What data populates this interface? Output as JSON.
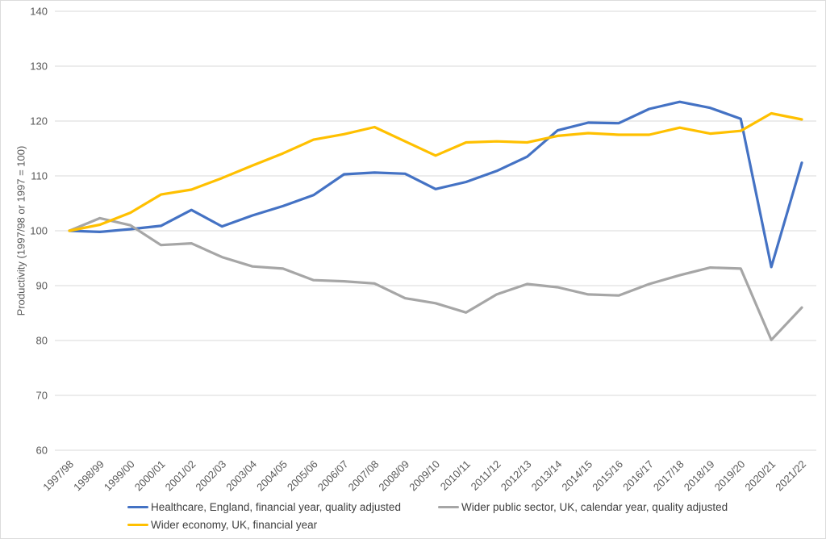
{
  "chart_data": {
    "type": "line",
    "title": "",
    "xlabel": "",
    "ylabel": "Productivity (1997/98 or 1997 = 100)",
    "ylim": [
      60,
      140
    ],
    "y_ticks": [
      60,
      70,
      80,
      90,
      100,
      110,
      120,
      130,
      140
    ],
    "grid": true,
    "legend_position": "bottom",
    "categories": [
      "1997/98",
      "1998/99",
      "1999/00",
      "2000/01",
      "2001/02",
      "2002/03",
      "2003/04",
      "2004/05",
      "2005/06",
      "2006/07",
      "2007/08",
      "2008/09",
      "2009/10",
      "2010/11",
      "2011/12",
      "2012/13",
      "2013/14",
      "2014/15",
      "2015/16",
      "2016/17",
      "2017/18",
      "2018/19",
      "2019/20",
      "2020/21",
      "2021/22"
    ],
    "series": [
      {
        "name": "Healthcare, England, financial year, quality adjusted",
        "color": "#4472C4",
        "values": [
          100,
          99.8,
          100.3,
          100.9,
          103.8,
          100.8,
          102.8,
          104.5,
          106.5,
          110.3,
          110.6,
          110.4,
          107.6,
          108.9,
          110.9,
          113.5,
          118.3,
          119.7,
          119.6,
          122.2,
          123.5,
          122.4,
          120.4,
          93.4,
          112.4
        ]
      },
      {
        "name": "Wider public sector, UK, calendar year, quality adjusted",
        "color": "#A6A6A6",
        "values": [
          100,
          102.3,
          101.0,
          97.4,
          97.7,
          95.2,
          93.5,
          93.1,
          91.0,
          90.8,
          90.4,
          87.7,
          86.8,
          85.1,
          88.4,
          90.3,
          89.7,
          88.4,
          88.2,
          90.3,
          91.9,
          93.3,
          93.1,
          80.1,
          86.0
        ]
      },
      {
        "name": "Wider economy, UK, financial year",
        "color": "#FFC000",
        "values": [
          100,
          101.1,
          103.3,
          106.6,
          107.5,
          109.6,
          111.9,
          114.1,
          116.6,
          117.6,
          118.9,
          116.3,
          113.7,
          116.1,
          116.3,
          116.1,
          117.3,
          117.8,
          117.5,
          117.5,
          118.8,
          117.7,
          118.2,
          121.4,
          120.3
        ]
      }
    ],
    "style": {
      "gridline_color": "#d9d9d9",
      "tick_label_color": "#595959",
      "legend_text_color": "#404040"
    }
  }
}
